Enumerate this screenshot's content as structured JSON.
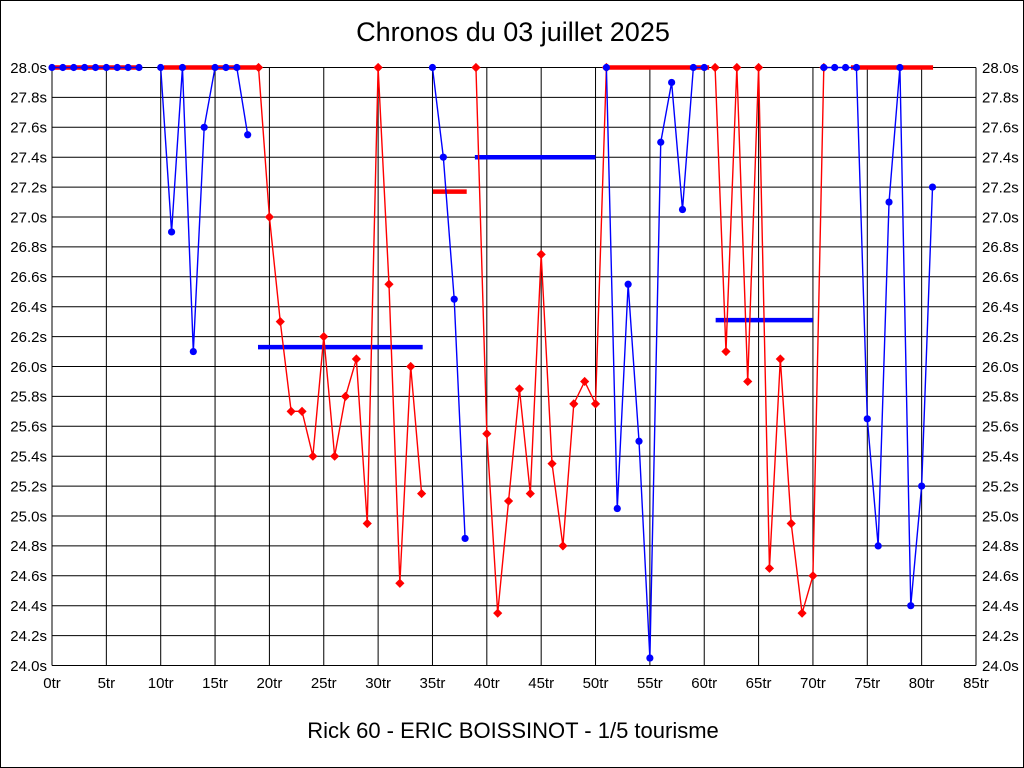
{
  "title": "Chronos du 03 juillet 2025",
  "subtitle": "Rick 60 - ERIC BOISSINOT - 1/5 tourisme",
  "chart_data": {
    "type": "line",
    "title": "Chronos du 03 juillet 2025",
    "footer": "Rick 60 - ERIC BOISSINOT - 1/5 tourisme",
    "xlim": [
      0,
      85
    ],
    "ylim": [
      24.0,
      28.0
    ],
    "x_tick_values": [
      0,
      5,
      10,
      15,
      20,
      25,
      30,
      35,
      40,
      45,
      50,
      55,
      60,
      65,
      70,
      75,
      80,
      85
    ],
    "x_tick_suffix": "tr",
    "y_tick_values": [
      28.0,
      27.8,
      27.6,
      27.4,
      27.2,
      27.0,
      26.8,
      26.6,
      26.4,
      26.2,
      26.0,
      25.8,
      25.6,
      25.4,
      25.2,
      25.0,
      24.8,
      24.6,
      24.4,
      24.2,
      24.0
    ],
    "y_tick_suffix": "s",
    "grid": true,
    "legend": "none",
    "colors": {
      "red": "#ff0000",
      "blue": "#0000ff",
      "grid": "#000000"
    },
    "series": [
      {
        "name": "red-driver",
        "color_key": "red",
        "marker": "diamond",
        "segments": [
          [
            [
              19,
              28
            ],
            [
              20,
              27.0
            ],
            [
              21,
              26.3
            ],
            [
              22,
              25.7
            ],
            [
              23,
              25.7
            ],
            [
              24,
              25.4
            ],
            [
              25,
              26.2
            ],
            [
              26,
              25.4
            ],
            [
              27,
              25.8
            ],
            [
              28,
              26.05
            ],
            [
              29,
              24.95
            ],
            [
              30,
              28
            ],
            [
              31,
              26.55
            ],
            [
              32,
              24.55
            ],
            [
              33,
              26.0
            ],
            [
              34,
              25.15
            ]
          ],
          [
            [
              39,
              28
            ],
            [
              40,
              25.55
            ],
            [
              41,
              24.35
            ],
            [
              42,
              25.1
            ],
            [
              43,
              25.85
            ],
            [
              44,
              25.15
            ],
            [
              45,
              26.75
            ],
            [
              46,
              25.35
            ],
            [
              47,
              24.8
            ],
            [
              48,
              25.75
            ],
            [
              49,
              25.9
            ],
            [
              50,
              25.75
            ],
            [
              51,
              28
            ]
          ],
          [
            [
              61,
              28
            ],
            [
              62,
              26.1
            ],
            [
              63,
              28
            ],
            [
              64,
              25.9
            ],
            [
              65,
              28
            ],
            [
              66,
              24.65
            ],
            [
              67,
              26.05
            ],
            [
              68,
              24.95
            ],
            [
              69,
              24.35
            ],
            [
              70,
              24.6
            ],
            [
              71,
              28
            ]
          ]
        ]
      },
      {
        "name": "blue-driver",
        "color_key": "blue",
        "marker": "circle",
        "segments": [
          [
            [
              0,
              28
            ],
            [
              1,
              28
            ],
            [
              2,
              28
            ],
            [
              3,
              28
            ],
            [
              4,
              28
            ],
            [
              5,
              28
            ],
            [
              6,
              28
            ],
            [
              7,
              28
            ],
            [
              8,
              28
            ]
          ],
          [
            [
              10,
              28
            ],
            [
              11,
              26.9
            ],
            [
              12,
              28
            ],
            [
              13,
              26.1
            ],
            [
              14,
              27.6
            ],
            [
              15,
              28
            ],
            [
              16,
              28
            ],
            [
              17,
              28
            ],
            [
              18,
              27.55
            ]
          ],
          [
            [
              35,
              28
            ],
            [
              36,
              27.4
            ],
            [
              37,
              26.45
            ],
            [
              38,
              24.85
            ]
          ],
          [
            [
              51,
              28
            ],
            [
              52,
              25.05
            ],
            [
              53,
              26.55
            ],
            [
              54,
              25.5
            ],
            [
              55,
              24.05
            ],
            [
              56,
              27.5
            ],
            [
              57,
              27.9
            ],
            [
              58,
              27.05
            ],
            [
              59,
              28
            ],
            [
              60,
              28
            ]
          ],
          [
            [
              71,
              28
            ],
            [
              72,
              28
            ],
            [
              73,
              28
            ],
            [
              74,
              28
            ],
            [
              75,
              25.65
            ],
            [
              76,
              24.8
            ],
            [
              77,
              27.1
            ],
            [
              78,
              28
            ],
            [
              79,
              24.4
            ],
            [
              80,
              25.2
            ],
            [
              81,
              27.2
            ]
          ]
        ]
      }
    ],
    "bars": [
      {
        "color_key": "red",
        "value": 28.0,
        "from": 0,
        "to": 8.15
      },
      {
        "color_key": "red",
        "value": 28.0,
        "from": 10.3,
        "to": 19.0
      },
      {
        "color_key": "blue",
        "value": 26.13,
        "from": 18.95,
        "to": 34.1
      },
      {
        "color_key": "red",
        "value": 27.17,
        "from": 35.05,
        "to": 38.15
      },
      {
        "color_key": "blue",
        "value": 27.4,
        "from": 38.9,
        "to": 50.0
      },
      {
        "color_key": "red",
        "value": 28.0,
        "from": 50.9,
        "to": 60.45
      },
      {
        "color_key": "blue",
        "value": 26.31,
        "from": 61.05,
        "to": 70.0
      },
      {
        "color_key": "red",
        "value": 28.0,
        "from": 73.5,
        "to": 81.05
      }
    ]
  }
}
